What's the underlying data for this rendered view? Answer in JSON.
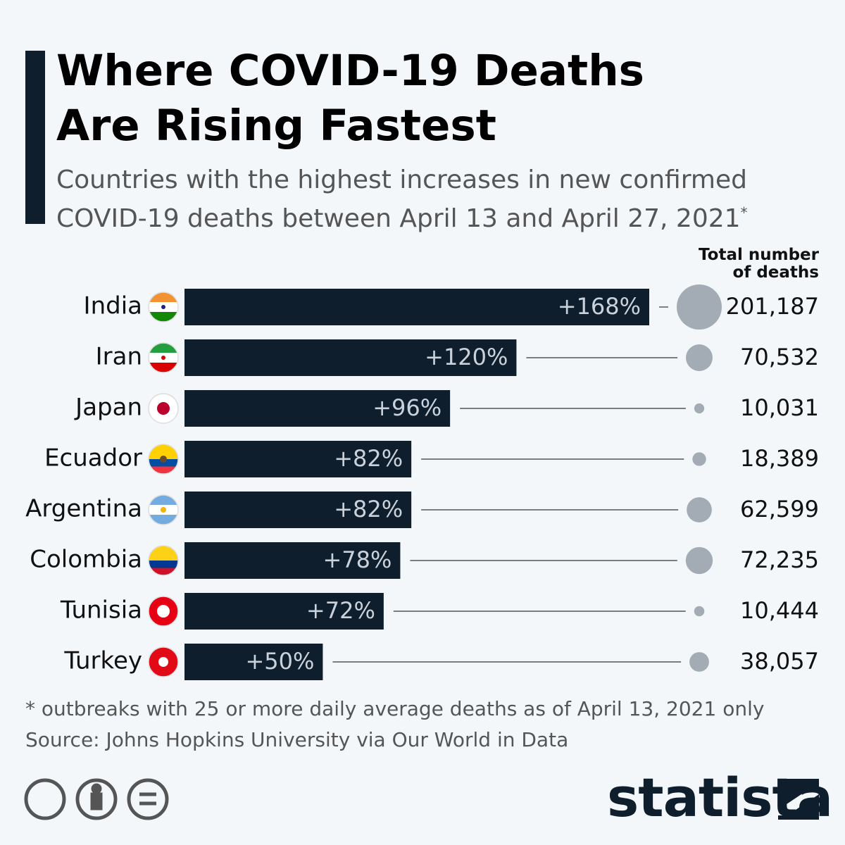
{
  "chart_data": {
    "type": "bar",
    "title": "Where COVID-19 Deaths Are Rising Fastest",
    "subtitle": "Countries with the highest increases in new confirmed COVID-19 deaths between April 13 and April 27, 2021",
    "subtitle_note": "*",
    "categories": [
      "India",
      "Iran",
      "Japan",
      "Ecuador",
      "Argentina",
      "Colombia",
      "Tunisia",
      "Turkey"
    ],
    "values": [
      168,
      120,
      96,
      82,
      82,
      78,
      72,
      50
    ],
    "value_labels": [
      "+168%",
      "+120%",
      "+96%",
      "+82%",
      "+82%",
      "+78%",
      "+72%",
      "+50%"
    ],
    "color": "#0f1e2d",
    "totals": {
      "name": "Total number of deaths",
      "color": "#a3acb5",
      "values": [
        201187,
        70532,
        10031,
        18389,
        62599,
        72235,
        10444,
        38057
      ],
      "value_labels": [
        "201,187",
        "70,532",
        "10,031",
        "18,389",
        "62,599",
        "72,235",
        "10,444",
        "38,057"
      ]
    },
    "footnote": "* outbreaks with 25 or more daily average deaths as of April 13, 2021 only",
    "source": "Source: Johns Hopkins University via Our World in Data",
    "brand": "statista"
  }
}
